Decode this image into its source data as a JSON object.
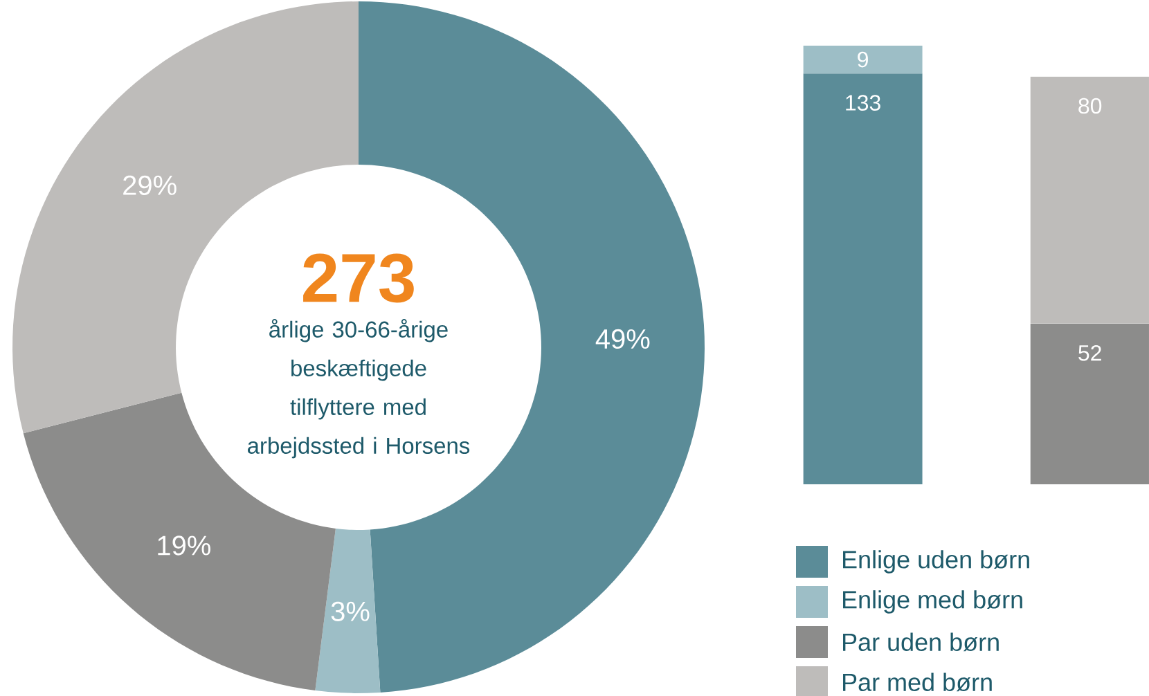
{
  "chart_data": [
    {
      "type": "donut",
      "categories": [
        "Enlige uden børn",
        "Enlige med børn",
        "Par uden børn",
        "Par med børn"
      ],
      "values": [
        49,
        3,
        19,
        29
      ],
      "colors": [
        "#5b8c98",
        "#9dbec6",
        "#8c8c8b",
        "#bebcba"
      ],
      "value_labels": [
        "49%",
        "3%",
        "19%",
        "29%"
      ],
      "annotations": [
        "273",
        "årlige 30-66-årige beskæftigede tilflyttere med arbejdssted i Horsens"
      ],
      "legend": "right"
    },
    {
      "type": "bar",
      "stacked": true,
      "categories": [
        null,
        null
      ],
      "data_labels": true,
      "series": [
        {
          "color": "#5b8c98",
          "values": [
            133,
            null
          ]
        },
        {
          "color": "#9dbec6",
          "values": [
            9,
            null
          ]
        },
        {
          "color": "#8c8c8b",
          "values": [
            null,
            52
          ]
        },
        {
          "color": "#bebcba",
          "values": [
            null,
            80
          ]
        }
      ]
    }
  ]
}
